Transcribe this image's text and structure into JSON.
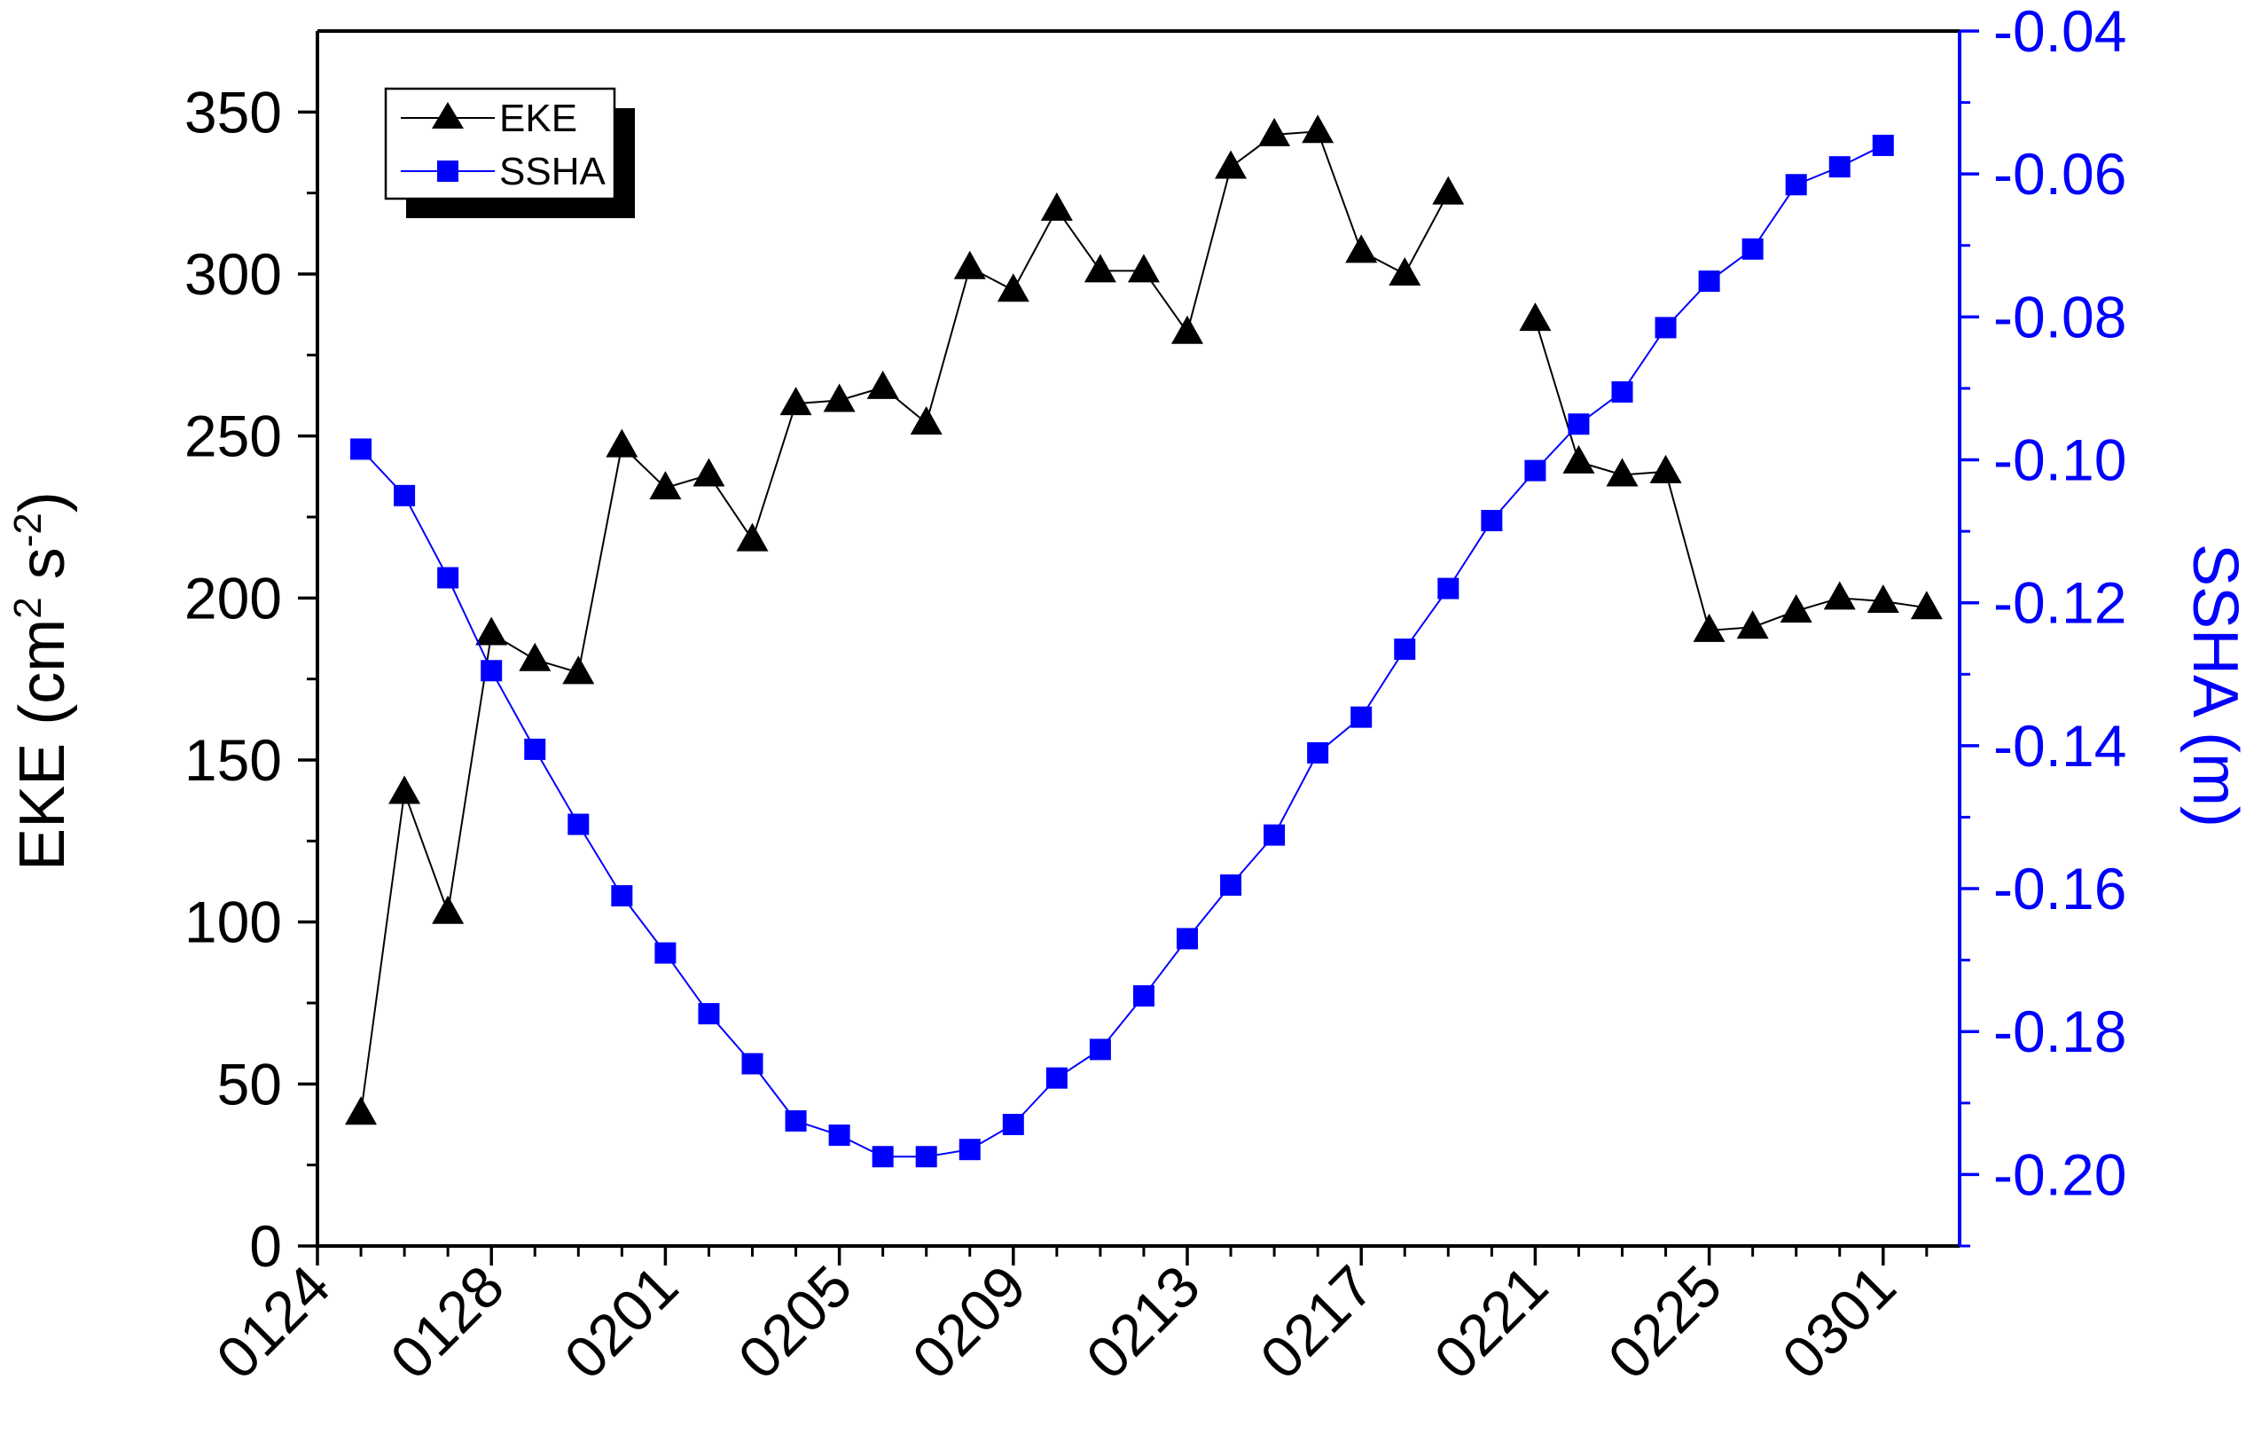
{
  "chart_data": {
    "type": "line",
    "x_tick_labels": [
      "0124",
      "0128",
      "0201",
      "0205",
      "0209",
      "0213",
      "0217",
      "0221",
      "0225",
      "0301"
    ],
    "x": [
      "0125",
      "0126",
      "0127",
      "0128",
      "0129",
      "0130",
      "0131",
      "0201",
      "0202",
      "0203",
      "0204",
      "0205",
      "0206",
      "0207",
      "0208",
      "0209",
      "0210",
      "0211",
      "0212",
      "0213",
      "0214",
      "0215",
      "0216",
      "0217",
      "0218",
      "0219",
      "0220",
      "0221",
      "0222",
      "0223",
      "0224",
      "0225",
      "0226",
      "0227",
      "0228",
      "0229",
      "0301",
      "0302"
    ],
    "series": [
      {
        "name": "EKE",
        "axis": "left",
        "marker": "triangle",
        "color": "#000000",
        "values": [
          41,
          140,
          103,
          189,
          181,
          177,
          247,
          234,
          238,
          218,
          260,
          261,
          265,
          254,
          302,
          295,
          320,
          301,
          301,
          282,
          333,
          343,
          344,
          307,
          300,
          325,
          null,
          286,
          242,
          238,
          239,
          190,
          191,
          196,
          200,
          199,
          197,
          null
        ]
      },
      {
        "name": "SSHA",
        "axis": "right",
        "marker": "square",
        "color": "#0000ff",
        "values": [
          -0.0985,
          -0.105,
          -0.1165,
          -0.1295,
          -0.1405,
          -0.151,
          -0.161,
          -0.169,
          -0.1775,
          -0.1845,
          -0.1925,
          -0.1945,
          -0.1975,
          -0.1975,
          -0.1965,
          -0.193,
          -0.1865,
          -0.1825,
          -0.175,
          -0.167,
          -0.1595,
          -0.1525,
          -0.141,
          -0.136,
          -0.1265,
          -0.118,
          -0.1085,
          -0.1015,
          -0.095,
          -0.0905,
          -0.0815,
          -0.075,
          -0.0705,
          -0.0615,
          -0.059,
          -0.056,
          null,
          null
        ]
      }
    ],
    "ylabel_left": "EKE (cm",
    "ylabel_left_sup1": "2",
    "ylabel_left_mid": " s",
    "ylabel_left_sup2": "-2",
    "ylabel_left_end": ")",
    "ylabel_right": "SSHA (m)",
    "ylim_left": [
      0,
      375
    ],
    "yticks_left": [
      "0",
      "50",
      "100",
      "150",
      "200",
      "250",
      "300",
      "350"
    ],
    "ylim_right": [
      -0.21,
      -0.04
    ],
    "yticks_right": [
      "-0.20",
      "-0.18",
      "-0.16",
      "-0.14",
      "-0.12",
      "-0.10",
      "-0.08",
      "-0.06",
      "-0.04"
    ],
    "legend_position": "top-left",
    "colors": {
      "left_axis": "#000000",
      "right_axis": "#0000ff"
    }
  }
}
